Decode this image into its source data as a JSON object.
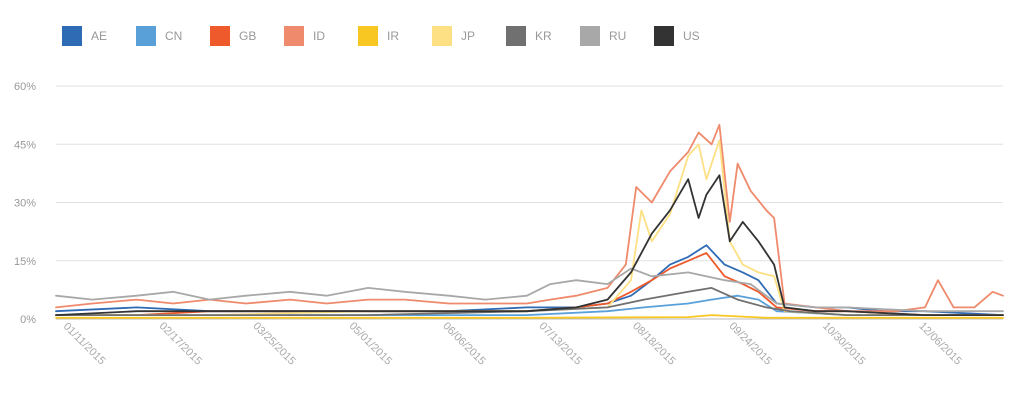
{
  "chart_data": {
    "type": "line",
    "y_unit": "%",
    "ylim": [
      0,
      60
    ],
    "y_ticks": [
      "0%",
      "15%",
      "30%",
      "45%",
      "60%"
    ],
    "x_ticks": [
      "01/11/2015",
      "02/17/2015",
      "03/25/2015",
      "05/01/2015",
      "06/06/2015",
      "07/13/2015",
      "08/18/2015",
      "09/24/2015",
      "10/30/2015",
      "12/06/2015"
    ],
    "x_range": [
      "01/01/2015",
      "12/31/2015"
    ],
    "grid": true,
    "legend_position": "top",
    "series": [
      {
        "name": "AE",
        "color": "#2f6bb5",
        "points": [
          [
            "01/01/2015",
            2
          ],
          [
            "02/01/2015",
            3
          ],
          [
            "03/01/2015",
            2
          ],
          [
            "04/01/2015",
            2
          ],
          [
            "05/01/2015",
            2
          ],
          [
            "06/01/2015",
            2
          ],
          [
            "07/01/2015",
            3
          ],
          [
            "07/20/2015",
            3
          ],
          [
            "08/01/2015",
            4
          ],
          [
            "08/10/2015",
            6
          ],
          [
            "08/18/2015",
            10
          ],
          [
            "08/25/2015",
            14
          ],
          [
            "09/01/2015",
            16
          ],
          [
            "09/08/2015",
            19
          ],
          [
            "09/15/2015",
            14
          ],
          [
            "09/22/2015",
            12
          ],
          [
            "09/28/2015",
            10
          ],
          [
            "10/05/2015",
            4
          ],
          [
            "10/20/2015",
            3
          ],
          [
            "11/01/2015",
            3
          ],
          [
            "11/15/2015",
            2
          ],
          [
            "12/01/2015",
            2
          ],
          [
            "12/31/2015",
            1
          ]
        ]
      },
      {
        "name": "CN",
        "color": "#5aa0d8",
        "points": [
          [
            "01/01/2015",
            1
          ],
          [
            "03/01/2015",
            1
          ],
          [
            "05/01/2015",
            1
          ],
          [
            "07/01/2015",
            1
          ],
          [
            "08/01/2015",
            2
          ],
          [
            "08/15/2015",
            3
          ],
          [
            "09/01/2015",
            4
          ],
          [
            "09/10/2015",
            5
          ],
          [
            "09/20/2015",
            6
          ],
          [
            "09/28/2015",
            5
          ],
          [
            "10/05/2015",
            2
          ],
          [
            "11/01/2015",
            1
          ],
          [
            "12/31/2015",
            1
          ]
        ]
      },
      {
        "name": "GB",
        "color": "#ee5a2c",
        "points": [
          [
            "01/01/2015",
            1
          ],
          [
            "02/01/2015",
            1
          ],
          [
            "03/01/2015",
            2
          ],
          [
            "04/01/2015",
            2
          ],
          [
            "05/01/2015",
            2
          ],
          [
            "06/01/2015",
            2
          ],
          [
            "07/01/2015",
            2
          ],
          [
            "07/20/2015",
            3
          ],
          [
            "08/01/2015",
            4
          ],
          [
            "08/10/2015",
            7
          ],
          [
            "08/18/2015",
            10
          ],
          [
            "08/25/2015",
            13
          ],
          [
            "09/01/2015",
            15
          ],
          [
            "09/08/2015",
            17
          ],
          [
            "09/15/2015",
            11
          ],
          [
            "09/22/2015",
            9
          ],
          [
            "09/28/2015",
            7
          ],
          [
            "10/05/2015",
            3
          ],
          [
            "10/20/2015",
            2
          ],
          [
            "11/01/2015",
            2
          ],
          [
            "12/01/2015",
            1
          ],
          [
            "12/31/2015",
            1
          ]
        ]
      },
      {
        "name": "ID",
        "color": "#ef8a6c",
        "points": [
          [
            "01/01/2015",
            3
          ],
          [
            "01/15/2015",
            4
          ],
          [
            "02/01/2015",
            5
          ],
          [
            "02/15/2015",
            4
          ],
          [
            "03/01/2015",
            5
          ],
          [
            "03/15/2015",
            4
          ],
          [
            "04/01/2015",
            5
          ],
          [
            "04/15/2015",
            4
          ],
          [
            "05/01/2015",
            5
          ],
          [
            "05/15/2015",
            5
          ],
          [
            "06/01/2015",
            4
          ],
          [
            "06/15/2015",
            4
          ],
          [
            "07/01/2015",
            4
          ],
          [
            "07/10/2015",
            5
          ],
          [
            "07/20/2015",
            6
          ],
          [
            "08/01/2015",
            8
          ],
          [
            "08/08/2015",
            14
          ],
          [
            "08/12/2015",
            34
          ],
          [
            "08/18/2015",
            30
          ],
          [
            "08/25/2015",
            38
          ],
          [
            "09/01/2015",
            43
          ],
          [
            "09/05/2015",
            48
          ],
          [
            "09/10/2015",
            45
          ],
          [
            "09/13/2015",
            50
          ],
          [
            "09/17/2015",
            25
          ],
          [
            "09/20/2015",
            40
          ],
          [
            "09/25/2015",
            33
          ],
          [
            "10/01/2015",
            28
          ],
          [
            "10/04/2015",
            26
          ],
          [
            "10/08/2015",
            4
          ],
          [
            "10/20/2015",
            3
          ],
          [
            "11/01/2015",
            2
          ],
          [
            "11/20/2015",
            2
          ],
          [
            "12/01/2015",
            3
          ],
          [
            "12/06/2015",
            10
          ],
          [
            "12/12/2015",
            3
          ],
          [
            "12/20/2015",
            3
          ],
          [
            "12/27/2015",
            7
          ],
          [
            "12/31/2015",
            6
          ]
        ]
      },
      {
        "name": "IR",
        "color": "#f9c722",
        "points": [
          [
            "01/01/2015",
            0.3
          ],
          [
            "03/01/2015",
            0.3
          ],
          [
            "05/01/2015",
            0.3
          ],
          [
            "07/01/2015",
            0.3
          ],
          [
            "09/01/2015",
            0.5
          ],
          [
            "09/10/2015",
            1
          ],
          [
            "10/01/2015",
            0.3
          ],
          [
            "12/31/2015",
            0.3
          ]
        ]
      },
      {
        "name": "JP",
        "color": "#fde083",
        "points": [
          [
            "01/01/2015",
            1
          ],
          [
            "03/01/2015",
            1
          ],
          [
            "05/01/2015",
            2
          ],
          [
            "07/01/2015",
            2
          ],
          [
            "08/01/2015",
            3
          ],
          [
            "08/10/2015",
            10
          ],
          [
            "08/14/2015",
            28
          ],
          [
            "08/18/2015",
            20
          ],
          [
            "08/25/2015",
            27
          ],
          [
            "09/01/2015",
            42
          ],
          [
            "09/05/2015",
            45
          ],
          [
            "09/08/2015",
            36
          ],
          [
            "09/13/2015",
            46
          ],
          [
            "09/17/2015",
            20
          ],
          [
            "09/22/2015",
            14
          ],
          [
            "09/28/2015",
            12
          ],
          [
            "10/04/2015",
            11
          ],
          [
            "10/08/2015",
            2
          ],
          [
            "11/01/2015",
            1
          ],
          [
            "12/31/2015",
            1
          ]
        ]
      },
      {
        "name": "KR",
        "color": "#707070",
        "points": [
          [
            "01/01/2015",
            1
          ],
          [
            "03/01/2015",
            1
          ],
          [
            "05/01/2015",
            1
          ],
          [
            "07/01/2015",
            2
          ],
          [
            "08/01/2015",
            3
          ],
          [
            "08/15/2015",
            5
          ],
          [
            "09/01/2015",
            7
          ],
          [
            "09/10/2015",
            8
          ],
          [
            "09/20/2015",
            5
          ],
          [
            "10/01/2015",
            3
          ],
          [
            "10/10/2015",
            2
          ],
          [
            "11/01/2015",
            1
          ],
          [
            "12/31/2015",
            1
          ]
        ]
      },
      {
        "name": "RU",
        "color": "#a8a8a8",
        "points": [
          [
            "01/01/2015",
            6
          ],
          [
            "01/15/2015",
            5
          ],
          [
            "02/01/2015",
            6
          ],
          [
            "02/15/2015",
            7
          ],
          [
            "03/01/2015",
            5
          ],
          [
            "03/15/2015",
            6
          ],
          [
            "04/01/2015",
            7
          ],
          [
            "04/15/2015",
            6
          ],
          [
            "05/01/2015",
            8
          ],
          [
            "05/15/2015",
            7
          ],
          [
            "06/01/2015",
            6
          ],
          [
            "06/15/2015",
            5
          ],
          [
            "07/01/2015",
            6
          ],
          [
            "07/10/2015",
            9
          ],
          [
            "07/20/2015",
            10
          ],
          [
            "08/01/2015",
            9
          ],
          [
            "08/10/2015",
            13
          ],
          [
            "08/18/2015",
            11
          ],
          [
            "09/01/2015",
            12
          ],
          [
            "09/15/2015",
            10
          ],
          [
            "09/25/2015",
            9
          ],
          [
            "10/05/2015",
            4
          ],
          [
            "10/20/2015",
            3
          ],
          [
            "11/01/2015",
            3
          ],
          [
            "12/01/2015",
            2
          ],
          [
            "12/31/2015",
            2
          ]
        ]
      },
      {
        "name": "US",
        "color": "#333333",
        "points": [
          [
            "01/01/2015",
            1
          ],
          [
            "02/01/2015",
            2
          ],
          [
            "03/01/2015",
            2
          ],
          [
            "04/01/2015",
            2
          ],
          [
            "05/01/2015",
            2
          ],
          [
            "06/01/2015",
            2
          ],
          [
            "07/01/2015",
            2
          ],
          [
            "07/20/2015",
            3
          ],
          [
            "08/01/2015",
            5
          ],
          [
            "08/10/2015",
            12
          ],
          [
            "08/18/2015",
            22
          ],
          [
            "08/25/2015",
            28
          ],
          [
            "09/01/2015",
            36
          ],
          [
            "09/05/2015",
            26
          ],
          [
            "09/08/2015",
            32
          ],
          [
            "09/13/2015",
            37
          ],
          [
            "09/17/2015",
            20
          ],
          [
            "09/22/2015",
            25
          ],
          [
            "09/28/2015",
            20
          ],
          [
            "10/04/2015",
            14
          ],
          [
            "10/08/2015",
            3
          ],
          [
            "10/20/2015",
            2
          ],
          [
            "11/01/2015",
            2
          ],
          [
            "12/01/2015",
            1
          ],
          [
            "12/31/2015",
            1
          ]
        ]
      }
    ]
  }
}
